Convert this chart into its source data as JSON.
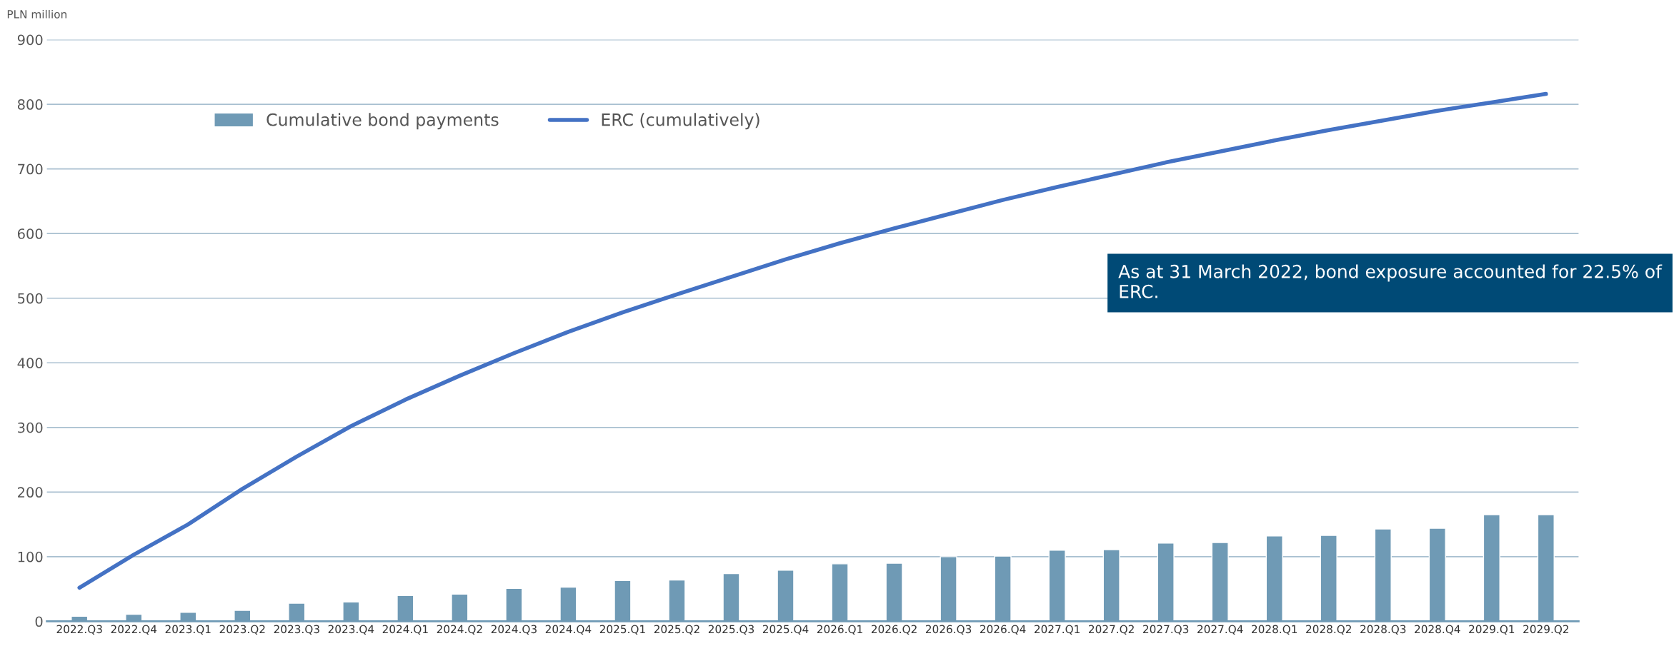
{
  "chart_data": {
    "type": "bar",
    "ylabel": "PLN million",
    "categories": [
      "2022.Q3",
      "2022.Q4",
      "2023.Q1",
      "2023.Q2",
      "2023.Q3",
      "2023.Q4",
      "2024.Q1",
      "2024.Q2",
      "2024.Q3",
      "2024.Q4",
      "2025.Q1",
      "2025.Q2",
      "2025.Q3",
      "2025.Q4",
      "2026.Q1",
      "2026.Q2",
      "2026.Q3",
      "2026.Q4",
      "2027.Q1",
      "2027.Q2",
      "2027.Q3",
      "2027.Q4",
      "2028.Q1",
      "2028.Q2",
      "2028.Q3",
      "2028.Q4",
      "2029.Q1",
      "2029.Q2"
    ],
    "series": [
      {
        "name": "Cumulative bond payments",
        "color": "#6f9ab5",
        "values": [
          8,
          11,
          14,
          17,
          28,
          30,
          40,
          42,
          51,
          53,
          63,
          64,
          74,
          79,
          89,
          90,
          100,
          101,
          110,
          111,
          121,
          122,
          132,
          133,
          143,
          144,
          165,
          165
        ]
      },
      {
        "name": "ERC (cumulatively)",
        "type": "line",
        "color": "#4472c4",
        "values": [
          52,
          103,
          150,
          205,
          255,
          302,
          343,
          380,
          415,
          448,
          478,
          506,
          533,
          560,
          585,
          608,
          630,
          652,
          672,
          691,
          710,
          727,
          744,
          760,
          775,
          790,
          803,
          816
        ]
      }
    ],
    "ylim": [
      0,
      900
    ],
    "yticks": [
      0,
      100,
      200,
      300,
      400,
      500,
      600,
      700,
      800,
      900
    ],
    "grid": "y",
    "legend": "top left",
    "marker": "none",
    "line_style": "solid",
    "annotations": [
      "As at 31 March 2022, bond exposure accounted for 22.5% of ERC."
    ]
  }
}
